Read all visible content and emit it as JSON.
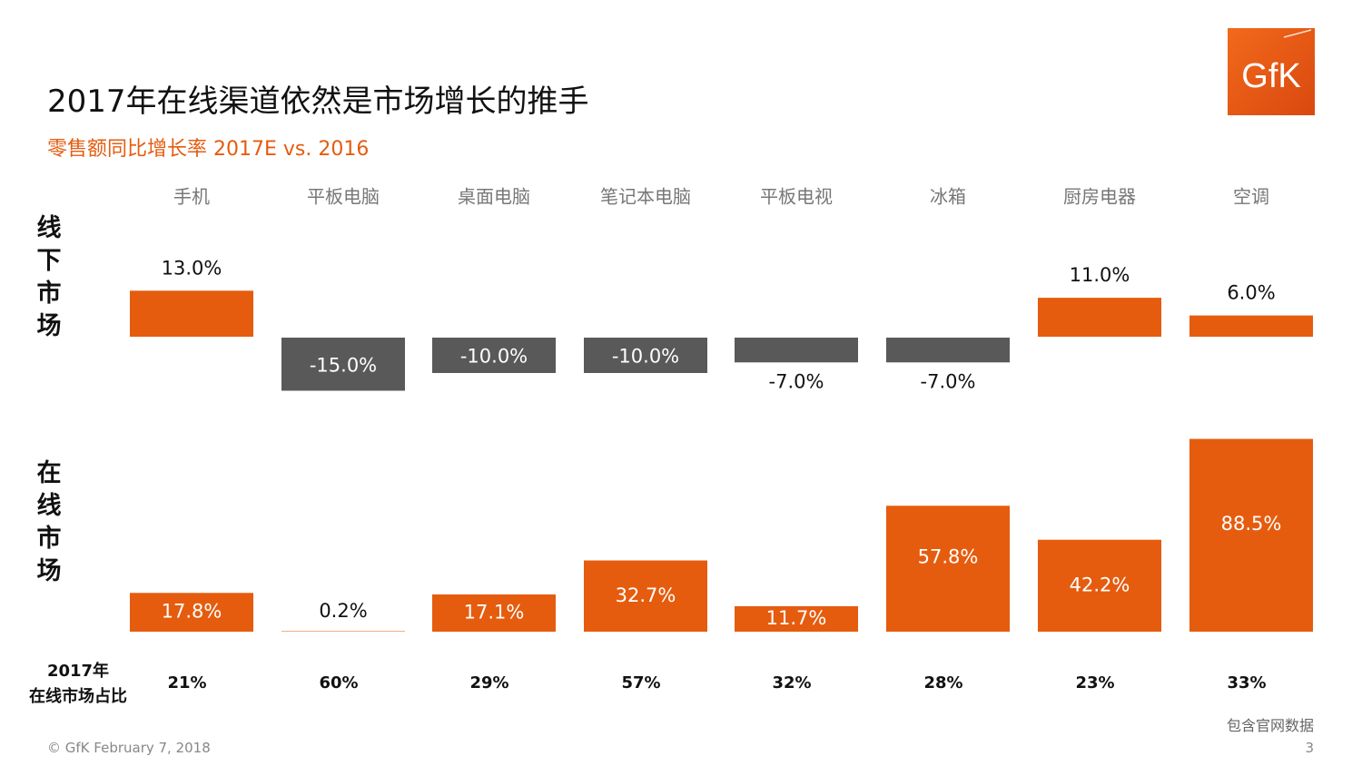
{
  "slide": {
    "title": "2017年在线渠道依然是市场增长的推手",
    "subtitle": "零售额同比增长率 2017E vs. 2016",
    "logo_text": "GfK",
    "row_labels": {
      "offline": "线下市场",
      "online": "在线市场"
    },
    "share_label": "2017年\n在线市场占比",
    "footer": {
      "source_note": "包含官网数据",
      "copyright": "© GfK February 7, 2018",
      "page_number": "3"
    }
  },
  "colors": {
    "positive": "#E55C0F",
    "negative": "#595959",
    "label_on_bar": "#ffffff",
    "label_off_bar": "#111111",
    "category_text": "#777777",
    "subtitle": "#E55C0F"
  },
  "chart_data": [
    {
      "type": "bar",
      "panel": "offline",
      "categories": [
        "手机",
        "平板电脑",
        "桌面电脑",
        "笔记本电脑",
        "平板电视",
        "冰箱",
        "厨房电器",
        "空调"
      ],
      "values": [
        13.0,
        -15.0,
        -10.0,
        -10.0,
        -7.0,
        -7.0,
        11.0,
        6.0
      ],
      "value_labels": [
        "13.0%",
        "-15.0%",
        "-10.0%",
        "-10.0%",
        "-7.0%",
        "-7.0%",
        "11.0%",
        "6.0%"
      ]
    },
    {
      "type": "bar",
      "panel": "online",
      "categories": [
        "手机",
        "平板电脑",
        "桌面电脑",
        "笔记本电脑",
        "平板电视",
        "冰箱",
        "厨房电器",
        "空调"
      ],
      "values": [
        17.8,
        0.2,
        17.1,
        32.7,
        11.7,
        57.8,
        42.2,
        88.5
      ],
      "value_labels": [
        "17.8%",
        "0.2%",
        "17.1%",
        "32.7%",
        "11.7%",
        "57.8%",
        "42.2%",
        "88.5%"
      ]
    },
    {
      "type": "table",
      "panel": "online_share_2017",
      "categories": [
        "手机",
        "平板电脑",
        "桌面电脑",
        "笔记本电脑",
        "平板电视",
        "冰箱",
        "厨房电器",
        "空调"
      ],
      "values": [
        21,
        60,
        29,
        57,
        32,
        28,
        23,
        33
      ],
      "value_labels": [
        "21%",
        "60%",
        "29%",
        "57%",
        "32%",
        "28%",
        "23%",
        "33%"
      ]
    }
  ]
}
